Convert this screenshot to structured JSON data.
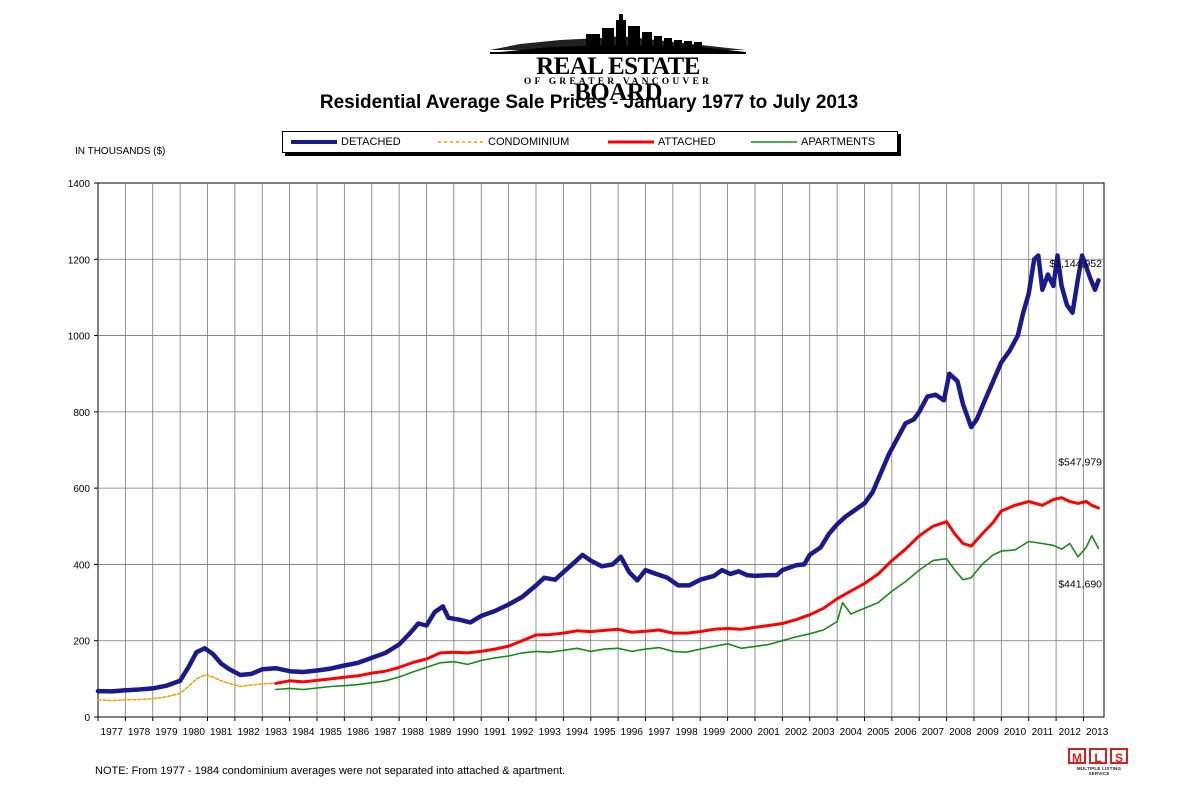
{
  "header": {
    "logo_main": "REAL ESTATE BOARD",
    "logo_sub": "OF GREATER VANCOUVER",
    "title": "Residential Average Sale Prices  -  January 1977 to July 2013",
    "units": "IN THOUSANDS ($)"
  },
  "colors": {
    "detached": "#1a1a8c",
    "condominium": "#f0a000",
    "attached": "#ff0000",
    "apartments": "#1a8a1a"
  },
  "footer": {
    "note": "NOTE:  From 1977 - 1984 condominium averages were not separated into attached & apartment.",
    "mls_letters": [
      "M",
      "L",
      "S"
    ],
    "mls_sub": "MULTIPLE LISTING SERVICE"
  },
  "chart_data": {
    "type": "line",
    "title": "Residential Average Sale Prices  -  January 1977 to July 2013",
    "ylabel": "IN THOUSANDS ($)",
    "ylim": [
      0,
      1400
    ],
    "yticks": [
      0,
      200,
      400,
      600,
      800,
      1000,
      1200,
      1400
    ],
    "xlim": [
      1977,
      2013.75
    ],
    "categories": [
      "1977",
      "1978",
      "1979",
      "1980",
      "1981",
      "1982",
      "1983",
      "1984",
      "1985",
      "1986",
      "1987",
      "1988",
      "1989",
      "1990",
      "1991",
      "1992",
      "1993",
      "1994",
      "1995",
      "1996",
      "1997",
      "1998",
      "1999",
      "2000",
      "2001",
      "2002",
      "2003",
      "2004",
      "2005",
      "2006",
      "2007",
      "2008",
      "2009",
      "2010",
      "2011",
      "2012",
      "2013"
    ],
    "legend_position": "top",
    "series": [
      {
        "name": "DETACHED",
        "style": "solid-thick",
        "points": [
          [
            1977,
            68
          ],
          [
            1977.5,
            67
          ],
          [
            1978,
            70
          ],
          [
            1978.5,
            72
          ],
          [
            1979,
            75
          ],
          [
            1979.5,
            82
          ],
          [
            1980,
            95
          ],
          [
            1980.3,
            130
          ],
          [
            1980.6,
            170
          ],
          [
            1980.9,
            180
          ],
          [
            1981.2,
            165
          ],
          [
            1981.5,
            140
          ],
          [
            1981.8,
            125
          ],
          [
            1982.2,
            110
          ],
          [
            1982.6,
            113
          ],
          [
            1983,
            125
          ],
          [
            1983.5,
            128
          ],
          [
            1984,
            120
          ],
          [
            1984.5,
            118
          ],
          [
            1985,
            122
          ],
          [
            1985.5,
            127
          ],
          [
            1986,
            135
          ],
          [
            1986.5,
            142
          ],
          [
            1987,
            155
          ],
          [
            1987.5,
            168
          ],
          [
            1988,
            190
          ],
          [
            1988.4,
            220
          ],
          [
            1988.7,
            245
          ],
          [
            1989,
            240
          ],
          [
            1989.3,
            275
          ],
          [
            1989.6,
            290
          ],
          [
            1989.8,
            260
          ],
          [
            1990.2,
            255
          ],
          [
            1990.6,
            248
          ],
          [
            1991,
            265
          ],
          [
            1991.5,
            278
          ],
          [
            1992,
            295
          ],
          [
            1992.5,
            315
          ],
          [
            1993,
            345
          ],
          [
            1993.3,
            365
          ],
          [
            1993.7,
            360
          ],
          [
            1994,
            380
          ],
          [
            1994.4,
            405
          ],
          [
            1994.7,
            425
          ],
          [
            1995,
            410
          ],
          [
            1995.4,
            395
          ],
          [
            1995.8,
            400
          ],
          [
            1996.1,
            420
          ],
          [
            1996.4,
            380
          ],
          [
            1996.7,
            358
          ],
          [
            1997,
            385
          ],
          [
            1997.4,
            375
          ],
          [
            1997.8,
            365
          ],
          [
            1998.2,
            345
          ],
          [
            1998.6,
            345
          ],
          [
            1999,
            360
          ],
          [
            1999.5,
            370
          ],
          [
            1999.8,
            385
          ],
          [
            2000.1,
            375
          ],
          [
            2000.4,
            382
          ],
          [
            2000.7,
            372
          ],
          [
            2001,
            370
          ],
          [
            2001.5,
            372
          ],
          [
            2001.8,
            372
          ],
          [
            2002,
            385
          ],
          [
            2002.5,
            398
          ],
          [
            2002.8,
            400
          ],
          [
            2003,
            425
          ],
          [
            2003.4,
            445
          ],
          [
            2003.7,
            480
          ],
          [
            2004,
            505
          ],
          [
            2004.3,
            525
          ],
          [
            2004.6,
            540
          ],
          [
            2005,
            560
          ],
          [
            2005.3,
            590
          ],
          [
            2005.6,
            640
          ],
          [
            2005.9,
            690
          ],
          [
            2006.2,
            730
          ],
          [
            2006.5,
            770
          ],
          [
            2006.8,
            780
          ],
          [
            2007,
            800
          ],
          [
            2007.3,
            840
          ],
          [
            2007.6,
            845
          ],
          [
            2007.9,
            830
          ],
          [
            2008.1,
            900
          ],
          [
            2008.4,
            880
          ],
          [
            2008.6,
            820
          ],
          [
            2008.9,
            760
          ],
          [
            2009.1,
            780
          ],
          [
            2009.4,
            830
          ],
          [
            2009.7,
            880
          ],
          [
            2010,
            930
          ],
          [
            2010.3,
            960
          ],
          [
            2010.6,
            1000
          ],
          [
            2010.8,
            1060
          ],
          [
            2011,
            1110
          ],
          [
            2011.2,
            1200
          ],
          [
            2011.35,
            1210
          ],
          [
            2011.5,
            1120
          ],
          [
            2011.7,
            1160
          ],
          [
            2011.9,
            1130
          ],
          [
            2012.05,
            1210
          ],
          [
            2012.2,
            1130
          ],
          [
            2012.4,
            1080
          ],
          [
            2012.6,
            1060
          ],
          [
            2012.8,
            1150
          ],
          [
            2012.95,
            1210
          ],
          [
            2013.1,
            1180
          ],
          [
            2013.25,
            1150
          ],
          [
            2013.42,
            1120
          ],
          [
            2013.55,
            1145
          ]
        ]
      },
      {
        "name": "CONDOMINIUM",
        "style": "dashed",
        "points": [
          [
            1977,
            45
          ],
          [
            1977.5,
            43
          ],
          [
            1978,
            45
          ],
          [
            1978.5,
            46
          ],
          [
            1979,
            48
          ],
          [
            1979.5,
            53
          ],
          [
            1980,
            62
          ],
          [
            1980.3,
            80
          ],
          [
            1980.6,
            100
          ],
          [
            1980.9,
            110
          ],
          [
            1981.2,
            105
          ],
          [
            1981.5,
            95
          ],
          [
            1981.8,
            88
          ],
          [
            1982.2,
            80
          ],
          [
            1982.6,
            84
          ],
          [
            1983,
            87
          ],
          [
            1983.5,
            88
          ]
        ]
      },
      {
        "name": "ATTACHED",
        "style": "solid",
        "points": [
          [
            1983.5,
            88
          ],
          [
            1984,
            95
          ],
          [
            1984.5,
            92
          ],
          [
            1985,
            96
          ],
          [
            1985.5,
            100
          ],
          [
            1986,
            104
          ],
          [
            1986.5,
            108
          ],
          [
            1987,
            115
          ],
          [
            1987.5,
            120
          ],
          [
            1988,
            130
          ],
          [
            1988.5,
            143
          ],
          [
            1989,
            152
          ],
          [
            1989.5,
            168
          ],
          [
            1990,
            170
          ],
          [
            1990.5,
            168
          ],
          [
            1991,
            172
          ],
          [
            1991.5,
            178
          ],
          [
            1992,
            186
          ],
          [
            1992.5,
            200
          ],
          [
            1993,
            215
          ],
          [
            1993.5,
            216
          ],
          [
            1994,
            220
          ],
          [
            1994.5,
            226
          ],
          [
            1995,
            224
          ],
          [
            1995.5,
            227
          ],
          [
            1996,
            230
          ],
          [
            1996.5,
            222
          ],
          [
            1997,
            225
          ],
          [
            1997.5,
            228
          ],
          [
            1998,
            220
          ],
          [
            1998.5,
            220
          ],
          [
            1999,
            224
          ],
          [
            1999.5,
            230
          ],
          [
            2000,
            232
          ],
          [
            2000.5,
            230
          ],
          [
            2001,
            235
          ],
          [
            2001.5,
            240
          ],
          [
            2002,
            245
          ],
          [
            2002.5,
            255
          ],
          [
            2003,
            268
          ],
          [
            2003.5,
            285
          ],
          [
            2004,
            310
          ],
          [
            2004.5,
            330
          ],
          [
            2005,
            350
          ],
          [
            2005.5,
            375
          ],
          [
            2006,
            410
          ],
          [
            2006.5,
            440
          ],
          [
            2007,
            475
          ],
          [
            2007.5,
            500
          ],
          [
            2008,
            512
          ],
          [
            2008.3,
            480
          ],
          [
            2008.6,
            455
          ],
          [
            2008.9,
            448
          ],
          [
            2009.3,
            480
          ],
          [
            2009.7,
            510
          ],
          [
            2010,
            540
          ],
          [
            2010.5,
            555
          ],
          [
            2011,
            565
          ],
          [
            2011.5,
            555
          ],
          [
            2011.9,
            570
          ],
          [
            2012.2,
            575
          ],
          [
            2012.5,
            565
          ],
          [
            2012.8,
            560
          ],
          [
            2013.1,
            565
          ],
          [
            2013.3,
            555
          ],
          [
            2013.55,
            548
          ]
        ]
      },
      {
        "name": "APARTMENTS",
        "style": "solid",
        "points": [
          [
            1983.5,
            72
          ],
          [
            1984,
            75
          ],
          [
            1984.5,
            72
          ],
          [
            1985,
            76
          ],
          [
            1985.5,
            80
          ],
          [
            1986,
            82
          ],
          [
            1986.5,
            85
          ],
          [
            1987,
            90
          ],
          [
            1987.5,
            95
          ],
          [
            1988,
            105
          ],
          [
            1988.5,
            118
          ],
          [
            1989,
            130
          ],
          [
            1989.5,
            142
          ],
          [
            1990,
            145
          ],
          [
            1990.5,
            138
          ],
          [
            1991,
            148
          ],
          [
            1991.5,
            155
          ],
          [
            1992,
            160
          ],
          [
            1992.5,
            168
          ],
          [
            1993,
            172
          ],
          [
            1993.5,
            170
          ],
          [
            1994,
            175
          ],
          [
            1994.5,
            180
          ],
          [
            1995,
            172
          ],
          [
            1995.5,
            178
          ],
          [
            1996,
            180
          ],
          [
            1996.5,
            172
          ],
          [
            1997,
            178
          ],
          [
            1997.5,
            182
          ],
          [
            1998,
            172
          ],
          [
            1998.5,
            170
          ],
          [
            1999,
            178
          ],
          [
            1999.5,
            185
          ],
          [
            2000,
            192
          ],
          [
            2000.5,
            180
          ],
          [
            2001,
            185
          ],
          [
            2001.5,
            190
          ],
          [
            2002,
            200
          ],
          [
            2002.5,
            210
          ],
          [
            2003,
            218
          ],
          [
            2003.5,
            228
          ],
          [
            2004,
            250
          ],
          [
            2004.2,
            300
          ],
          [
            2004.5,
            270
          ],
          [
            2005,
            285
          ],
          [
            2005.5,
            300
          ],
          [
            2006,
            330
          ],
          [
            2006.5,
            355
          ],
          [
            2007,
            385
          ],
          [
            2007.5,
            410
          ],
          [
            2008,
            415
          ],
          [
            2008.3,
            385
          ],
          [
            2008.6,
            360
          ],
          [
            2008.9,
            365
          ],
          [
            2009.3,
            400
          ],
          [
            2009.7,
            425
          ],
          [
            2010,
            435
          ],
          [
            2010.5,
            438
          ],
          [
            2011,
            460
          ],
          [
            2011.5,
            455
          ],
          [
            2011.9,
            450
          ],
          [
            2012.2,
            440
          ],
          [
            2012.5,
            455
          ],
          [
            2012.8,
            420
          ],
          [
            2013.1,
            445
          ],
          [
            2013.3,
            475
          ],
          [
            2013.55,
            442
          ]
        ]
      }
    ],
    "annotations": [
      {
        "text": "$1,144,952",
        "series": "DETACHED",
        "value": 1144952
      },
      {
        "text": "$547,979",
        "series": "ATTACHED",
        "value": 547979
      },
      {
        "text": "$441,690",
        "series": "APARTMENTS",
        "value": 441690
      }
    ]
  }
}
